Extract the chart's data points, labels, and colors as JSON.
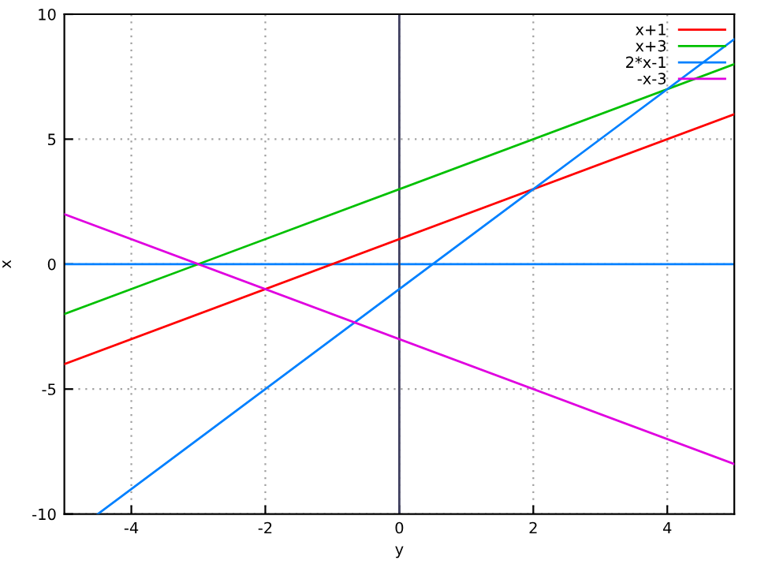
{
  "chart_data": {
    "type": "line",
    "xlabel": "y",
    "ylabel": "x",
    "series": [
      {
        "name": "x+1",
        "color": "#ff0000",
        "x": [
          -5,
          5
        ],
        "values": [
          -4,
          6
        ]
      },
      {
        "name": "x+3",
        "color": "#00c000",
        "x": [
          -5,
          5
        ],
        "values": [
          -2,
          8
        ]
      },
      {
        "name": "2*x-1",
        "color": "#0080ff",
        "x": [
          -4.5,
          5
        ],
        "values": [
          -10,
          9
        ]
      },
      {
        "name": "-x-3",
        "color": "#e000e0",
        "x": [
          -5,
          5
        ],
        "values": [
          2,
          -8
        ]
      }
    ],
    "xlim": [
      -5,
      5
    ],
    "ylim": [
      -10,
      10
    ],
    "xticks": [
      -4,
      -2,
      0,
      2,
      4
    ],
    "yticks": [
      -10,
      -5,
      0,
      5,
      10
    ],
    "ref_lines": [
      {
        "axis": "y",
        "value": 0,
        "color": "#0080ff"
      },
      {
        "axis": "x",
        "value": 0,
        "color": "#404060"
      }
    ],
    "grid": true,
    "legend": "top right",
    "line_style": "solid",
    "marker": "none"
  }
}
